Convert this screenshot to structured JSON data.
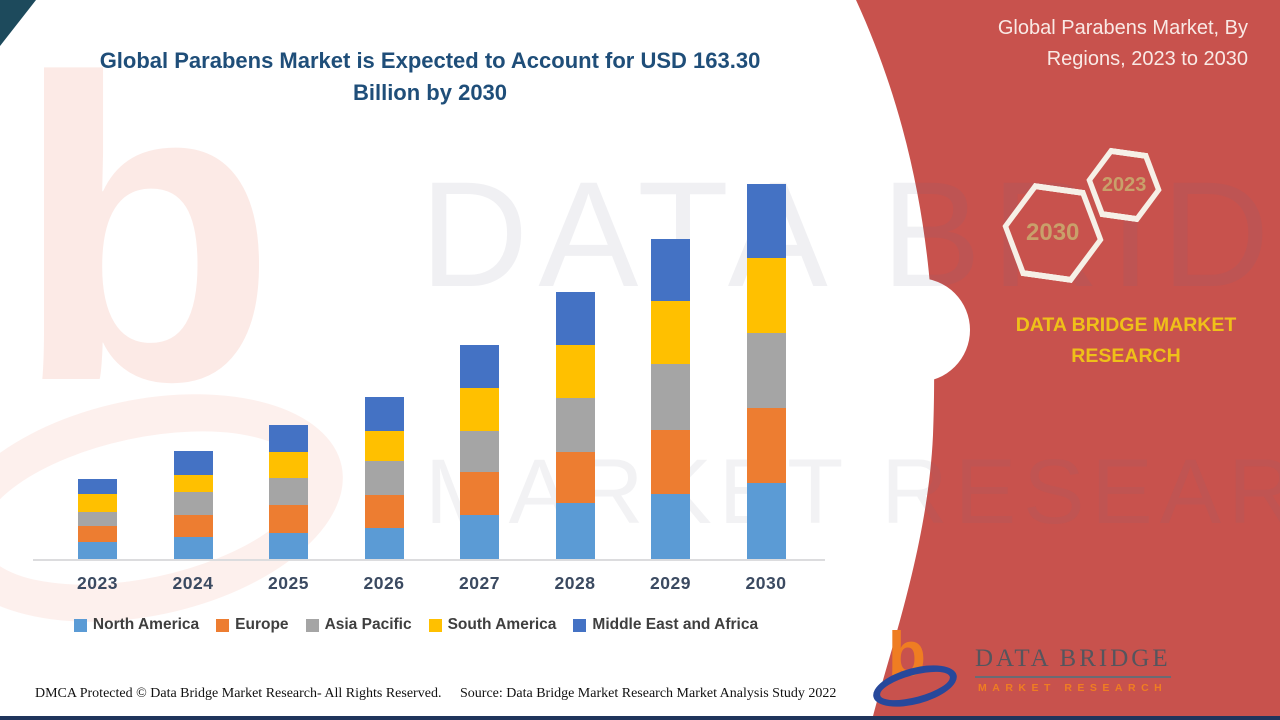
{
  "page": {
    "title": "Global Parabens Market is Expected to Account for USD 163.30 Billion by 2030"
  },
  "sidebar": {
    "title": "Global Parabens Market, By Regions, 2023 to 2030",
    "hex_front_label": "2030",
    "hex_back_label": "2023",
    "brand_text": "DATA BRIDGE MARKET RESEARCH",
    "bg_color": "#c8524d",
    "brand_color": "#efc019",
    "hex_label_color": "#c9a06a"
  },
  "watermarks": {
    "text_top": "DATA BRIDGE",
    "text_bottom": "MARKET RESEARCH"
  },
  "logo": {
    "name": "DATA BRIDGE",
    "tagline": "MARKET RESEARCH"
  },
  "footer": {
    "dmca": "DMCA Protected © Data Bridge Market Research- All Rights Reserved.",
    "source": "Source: Data Bridge Market Research Market Analysis Study 2022"
  },
  "chart_data": {
    "type": "bar",
    "stacked": true,
    "title": "Global Parabens Market is Expected to Account for USD 163.30 Billion by 2030",
    "value_unit": "USD Billion",
    "legend_position": "bottom",
    "grid": false,
    "y_axis_shown": false,
    "total_2030": 163.3,
    "categories": [
      "2023",
      "2024",
      "2025",
      "2026",
      "2027",
      "2028",
      "2029",
      "2030"
    ],
    "series": [
      {
        "name": "North America",
        "color": "#5B9BD5",
        "values": [
          7.4,
          9.7,
          11.5,
          13.5,
          19.2,
          24.3,
          28.3,
          33.1
        ]
      },
      {
        "name": "Europe",
        "color": "#ED7D31",
        "values": [
          6.8,
          9.4,
          12.1,
          14.5,
          18.9,
          22.5,
          27.9,
          32.7
        ]
      },
      {
        "name": "Asia Pacific",
        "color": "#A5A5A5",
        "values": [
          6.5,
          9.9,
          11.6,
          14.8,
          17.7,
          23.5,
          28.7,
          32.7
        ]
      },
      {
        "name": "South America",
        "color": "#FFC000",
        "values": [
          7.6,
          7.8,
          11.3,
          12.8,
          18.9,
          22.9,
          27.3,
          32.7
        ]
      },
      {
        "name": "Middle East and Africa",
        "color": "#4472C4",
        "values": [
          6.7,
          10.1,
          11.9,
          14.8,
          18.6,
          22.9,
          27.2,
          32.2
        ]
      }
    ]
  }
}
